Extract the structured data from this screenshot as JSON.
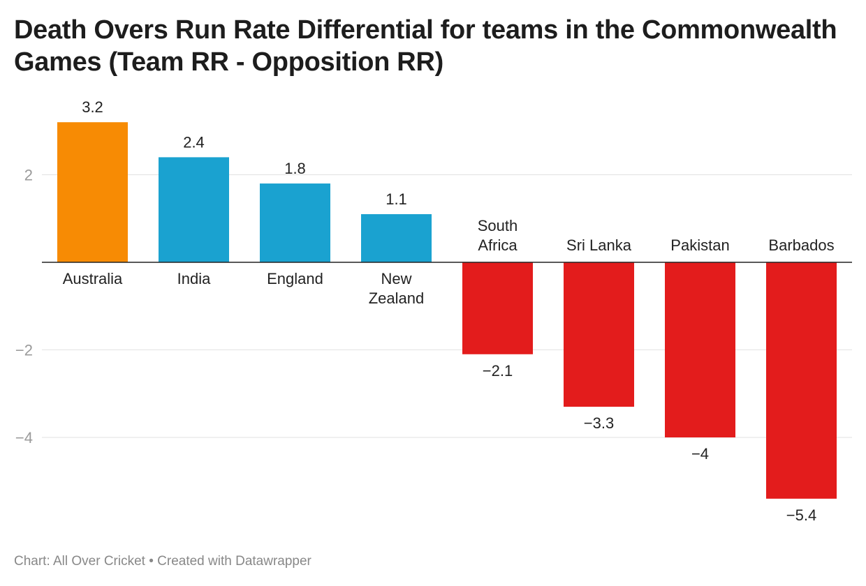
{
  "title": "Death Overs Run Rate Differential for teams in the Commonwealth Games (Team RR - Opposition RR)",
  "footer": {
    "source": "Chart: All Over Cricket",
    "separator": " • ",
    "credit": "Created with Datawrapper"
  },
  "chart_data": {
    "type": "bar",
    "title": "Death Overs Run Rate Differential for teams in the Commonwealth Games (Team RR - Opposition RR)",
    "xlabel": "",
    "ylabel": "",
    "categories": [
      "Australia",
      "India",
      "England",
      "New Zealand",
      "South Africa",
      "Sri Lanka",
      "Pakistan",
      "Barbados"
    ],
    "category_lines": [
      [
        "Australia"
      ],
      [
        "India"
      ],
      [
        "England"
      ],
      [
        "New",
        "Zealand"
      ],
      [
        "South",
        "Africa"
      ],
      [
        "Sri Lanka"
      ],
      [
        "Pakistan"
      ],
      [
        "Barbados"
      ]
    ],
    "values": [
      3.2,
      2.4,
      1.8,
      1.1,
      -2.1,
      -3.3,
      -4,
      -5.4
    ],
    "value_labels": [
      "3.2",
      "2.4",
      "1.8",
      "1.1",
      "−2.1",
      "−3.3",
      "−4",
      "−5.4"
    ],
    "colors": [
      "#f78b04",
      "#1aa2d0",
      "#1aa2d0",
      "#1aa2d0",
      "#e31c1c",
      "#e31c1c",
      "#e31c1c",
      "#e31c1c"
    ],
    "yticks": [
      2,
      -2,
      -4
    ],
    "ytick_labels": [
      "2",
      "−2",
      "−4"
    ],
    "ylim": [
      -5.9,
      3.6
    ],
    "grid": true,
    "legend": "none"
  }
}
